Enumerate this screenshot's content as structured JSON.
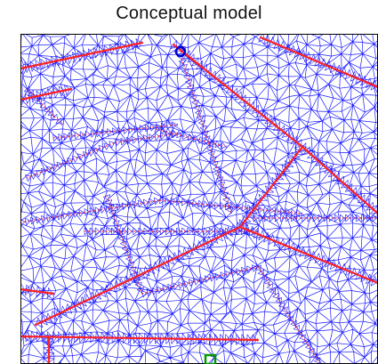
{
  "title": "Conceptual model",
  "colors": {
    "mesh": "#1a1aff",
    "fracture": "#ff2222",
    "dotted_fracture": "#ff4444",
    "boundary": "#000000",
    "injection_well": "#0000cc",
    "production_well": "#009900",
    "background": "#ffffff"
  },
  "legend_items": [],
  "markers": [
    {
      "name": "injection-well-icon",
      "shape": "ring",
      "color": "#0000cc"
    },
    {
      "name": "production-well-icon",
      "shape": "square-ring",
      "color": "#009900"
    }
  ]
}
